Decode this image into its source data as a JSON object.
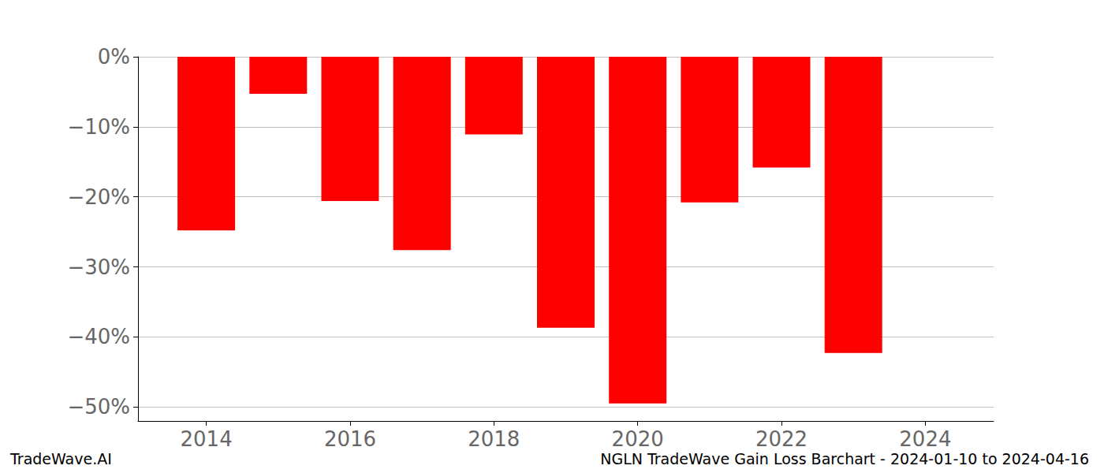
{
  "chart_data": {
    "type": "bar",
    "title": "NGLN TradeWave Gain Loss Barchart - 2024-01-10 to 2024-04-16",
    "annotations": [
      "TradeWave.AI"
    ],
    "x": [
      2014,
      2015,
      2016,
      2017,
      2018,
      2019,
      2020,
      2021,
      2022,
      2023
    ],
    "values": [
      -24.8,
      -5.3,
      -20.6,
      -27.6,
      -11.1,
      -38.7,
      -49.5,
      -20.8,
      -15.8,
      -42.3
    ],
    "color": "#ff0000",
    "xlim": [
      2013.05,
      2024.95
    ],
    "xticks": [
      2014,
      2016,
      2018,
      2020,
      2022,
      2024
    ],
    "ylim": [
      -52,
      0
    ],
    "yticks": [
      {
        "value": -50,
        "label": "−50%"
      },
      {
        "value": -40,
        "label": "−40%"
      },
      {
        "value": -30,
        "label": "−30%"
      },
      {
        "value": -20,
        "label": "−20%"
      },
      {
        "value": -10,
        "label": "−10%"
      },
      {
        "value": 0,
        "label": "0%"
      }
    ],
    "grid": true
  }
}
